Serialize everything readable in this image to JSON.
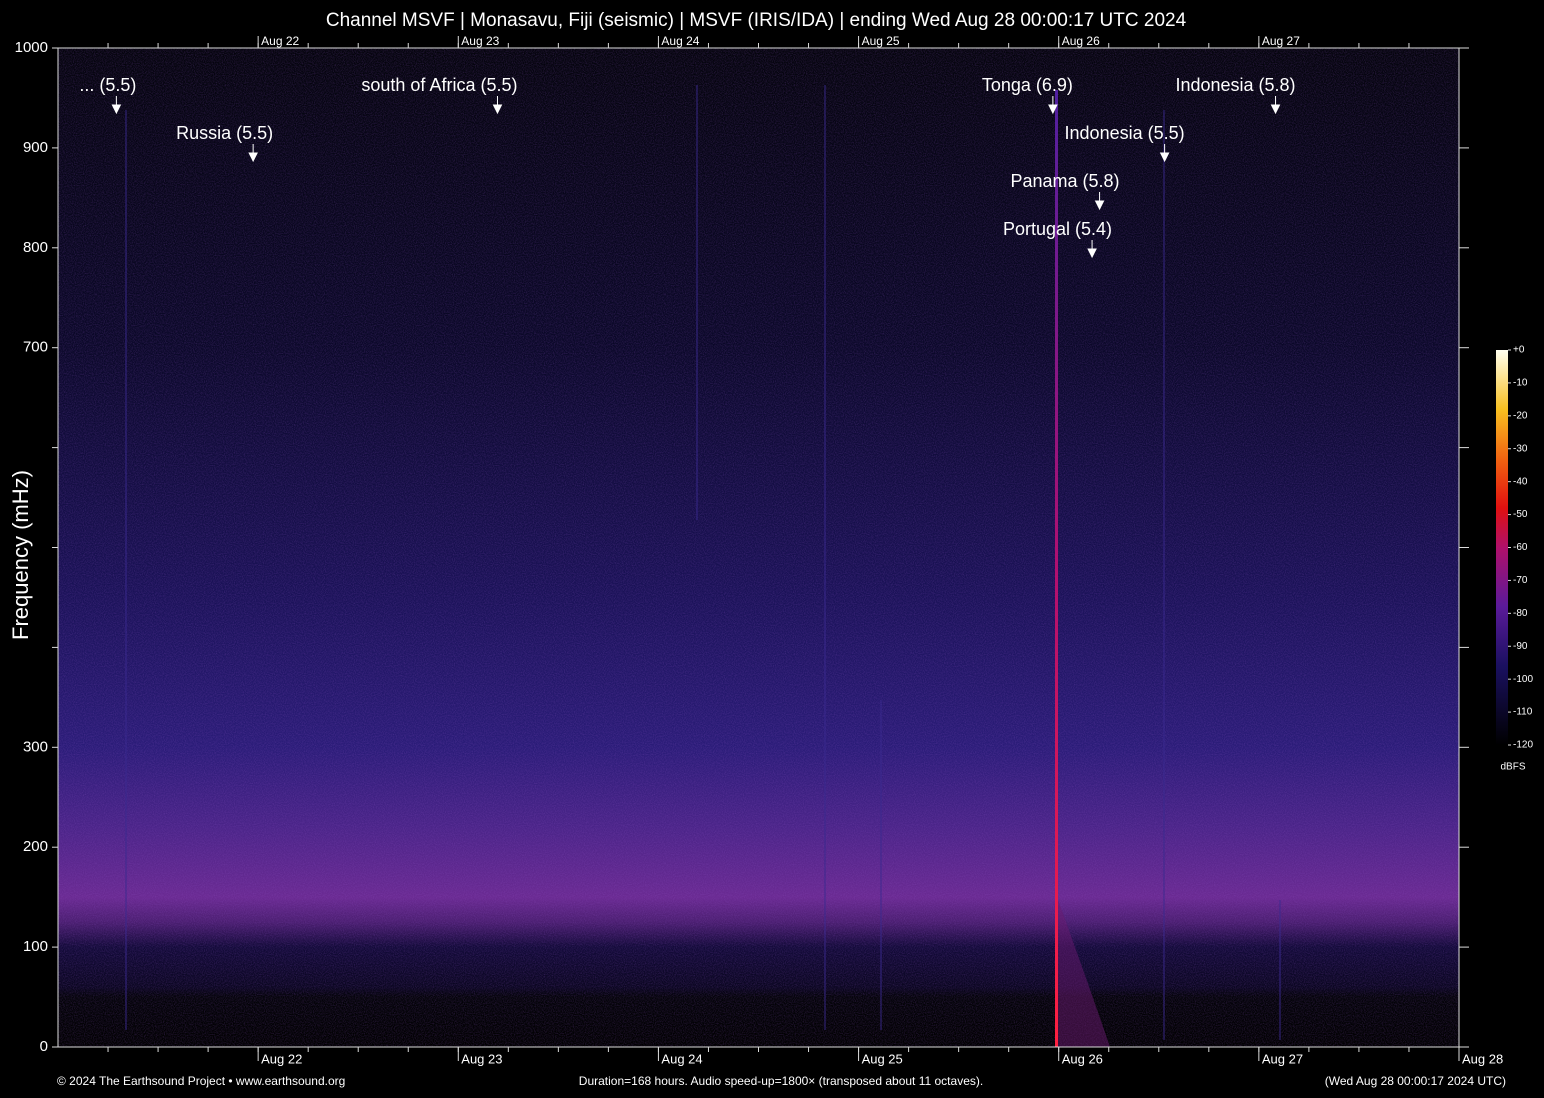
{
  "chart_data": {
    "type": "spectrogram",
    "title": "Channel MSVF | Monasavu, Fiji (seismic) | MSVF (IRIS/IDA) | ending Wed Aug 28 00:00:17 UTC 2024",
    "ylabel": "Frequency (mHz)",
    "xlim": [
      0,
      168
    ],
    "xticks": [
      {
        "value": 24,
        "label": "Aug 22"
      },
      {
        "value": 48,
        "label": "Aug 23"
      },
      {
        "value": 72,
        "label": "Aug 24"
      },
      {
        "value": 96,
        "label": "Aug 25"
      },
      {
        "value": 120,
        "label": "Aug 26"
      },
      {
        "value": 144,
        "label": "Aug 27"
      },
      {
        "value": 168,
        "label": "Aug 28"
      }
    ],
    "minor_xtick_step": 6,
    "ylim": [
      0,
      1000
    ],
    "yticks": [
      0,
      100,
      200,
      300,
      700,
      800,
      900,
      1000
    ],
    "minor_yticks": [
      400,
      500,
      600
    ],
    "annotations": [
      {
        "text": "... (5.5)",
        "x": 7.0
      },
      {
        "text": "Russia (5.5)",
        "x": 23.4
      },
      {
        "text": "south of Africa (5.5)",
        "x": 52.7
      },
      {
        "text": "Tonga (6.9)",
        "x": 119.3
      },
      {
        "text": "Indonesia (5.5)",
        "x": 132.7
      },
      {
        "text": "Panama (5.8)",
        "x": 124.9
      },
      {
        "text": "Portugal (5.4)",
        "x": 124.0
      },
      {
        "text": "Indonesia (5.8)",
        "x": 146.0
      }
    ],
    "colorbar": {
      "label": "dBFS",
      "lim": [
        -120,
        0
      ],
      "ticks": [
        {
          "value": 0,
          "label": "+0"
        },
        -10,
        -20,
        -30,
        -40,
        -50,
        -60,
        -70,
        -80,
        -90,
        -100,
        -110,
        -120
      ]
    },
    "footer_left": "© 2024 The Earthsound Project • www.earthsound.org",
    "footer_center": "Duration=168 hours. Audio speed-up=1800× (transposed about 11 octaves).",
    "footer_right": "(Wed Aug 28 00:00:17 2024 UTC)"
  }
}
